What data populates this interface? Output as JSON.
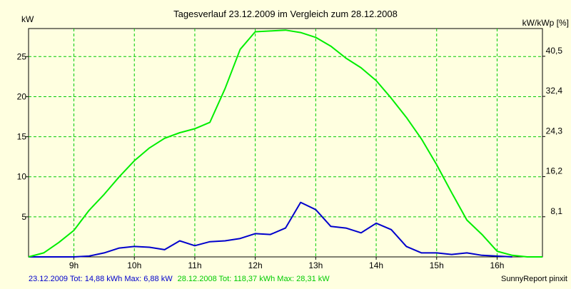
{
  "chart_data": {
    "type": "line",
    "title": "Tagesverlauf 23.12.2009 im Vergleich zum 28.12.2008",
    "ylabel_left": "kW",
    "ylabel_right": "kW/kWp [%]",
    "xlim": [
      8.25,
      16.75
    ],
    "ylim_left": [
      0,
      28.5
    ],
    "ylim_right": [
      0,
      46.1
    ],
    "x_ticks": [
      {
        "value": 9,
        "label": "9h"
      },
      {
        "value": 10,
        "label": "10h"
      },
      {
        "value": 11,
        "label": "11h"
      },
      {
        "value": 12,
        "label": "12h"
      },
      {
        "value": 13,
        "label": "13h"
      },
      {
        "value": 14,
        "label": "14h"
      },
      {
        "value": 15,
        "label": "15h"
      },
      {
        "value": 16,
        "label": "16h"
      }
    ],
    "y_ticks_left": [
      {
        "value": 5,
        "label": "5"
      },
      {
        "value": 10,
        "label": "10"
      },
      {
        "value": 15,
        "label": "15"
      },
      {
        "value": 20,
        "label": "20"
      },
      {
        "value": 25,
        "label": "25"
      }
    ],
    "y_ticks_right": [
      {
        "value": 8.1,
        "label": "8,1"
      },
      {
        "value": 16.2,
        "label": "16,2"
      },
      {
        "value": 24.3,
        "label": "24,3"
      },
      {
        "value": 32.4,
        "label": "32,4"
      },
      {
        "value": 40.5,
        "label": "40,5"
      }
    ],
    "grid": true,
    "series": [
      {
        "name": "23.12.2009",
        "color": "#0000cc",
        "x": [
          8.25,
          9.0,
          9.25,
          9.5,
          9.75,
          10.0,
          10.25,
          10.5,
          10.75,
          11.0,
          11.25,
          11.5,
          11.75,
          12.0,
          12.25,
          12.5,
          12.75,
          13.0,
          13.25,
          13.5,
          13.75,
          14.0,
          14.25,
          14.5,
          14.75,
          15.0,
          15.25,
          15.5,
          15.75,
          16.0,
          16.25
        ],
        "y": [
          0,
          0,
          0.1,
          0.5,
          1.1,
          1.3,
          1.2,
          0.9,
          2.0,
          1.4,
          1.9,
          2.0,
          2.3,
          2.9,
          2.8,
          3.6,
          6.8,
          5.9,
          3.8,
          3.6,
          3.0,
          4.2,
          3.4,
          1.3,
          0.5,
          0.5,
          0.3,
          0.5,
          0.2,
          0.1,
          0
        ]
      },
      {
        "name": "28.12.2008",
        "color": "#00ee00",
        "x": [
          8.25,
          8.5,
          8.75,
          9.0,
          9.25,
          9.5,
          9.75,
          10.0,
          10.25,
          10.5,
          10.75,
          11.0,
          11.25,
          11.5,
          11.75,
          12.0,
          12.25,
          12.5,
          12.75,
          13.0,
          13.25,
          13.5,
          13.75,
          14.0,
          14.25,
          14.5,
          14.75,
          15.0,
          15.25,
          15.5,
          15.75,
          16.0,
          16.25,
          16.5,
          16.75
        ],
        "y": [
          0,
          0.5,
          1.8,
          3.3,
          5.8,
          7.8,
          10.0,
          12.0,
          13.6,
          14.8,
          15.5,
          16.0,
          16.8,
          21.0,
          25.9,
          28.1,
          28.2,
          28.3,
          28.0,
          27.4,
          26.3,
          24.8,
          23.6,
          22.0,
          19.8,
          17.4,
          14.7,
          11.5,
          8.0,
          4.6,
          2.8,
          0.7,
          0.2,
          0,
          0
        ]
      }
    ],
    "footer": {
      "series1_summary": "23.12.2009 Tot: 14,88 kWh Max: 6,88 kW",
      "series2_summary": "28.12.2008 Tot: 118,37 kWh Max: 28,31 kW",
      "brand": "SunnyReport pinxit"
    }
  }
}
